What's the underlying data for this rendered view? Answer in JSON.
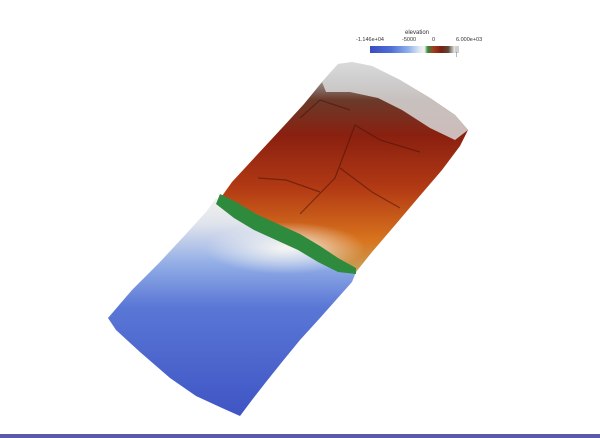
{
  "colorbar": {
    "title": "elevation",
    "ticks": {
      "min": "-1.146e+04",
      "mid1": "-5000",
      "mid2": "0",
      "max": "6.000e+03"
    },
    "marker": "|"
  },
  "colors": {
    "ocean_deep": "#3b4cc0",
    "ocean_shallow": "#8fb0ea",
    "shore": "#f0f0ea",
    "coast_green": "#2e8b3e",
    "land_low": "#c8501a",
    "land_high": "#7a1e10",
    "mountain_top": "#e8e8e8",
    "bottom_border": "#5a5aa8"
  }
}
